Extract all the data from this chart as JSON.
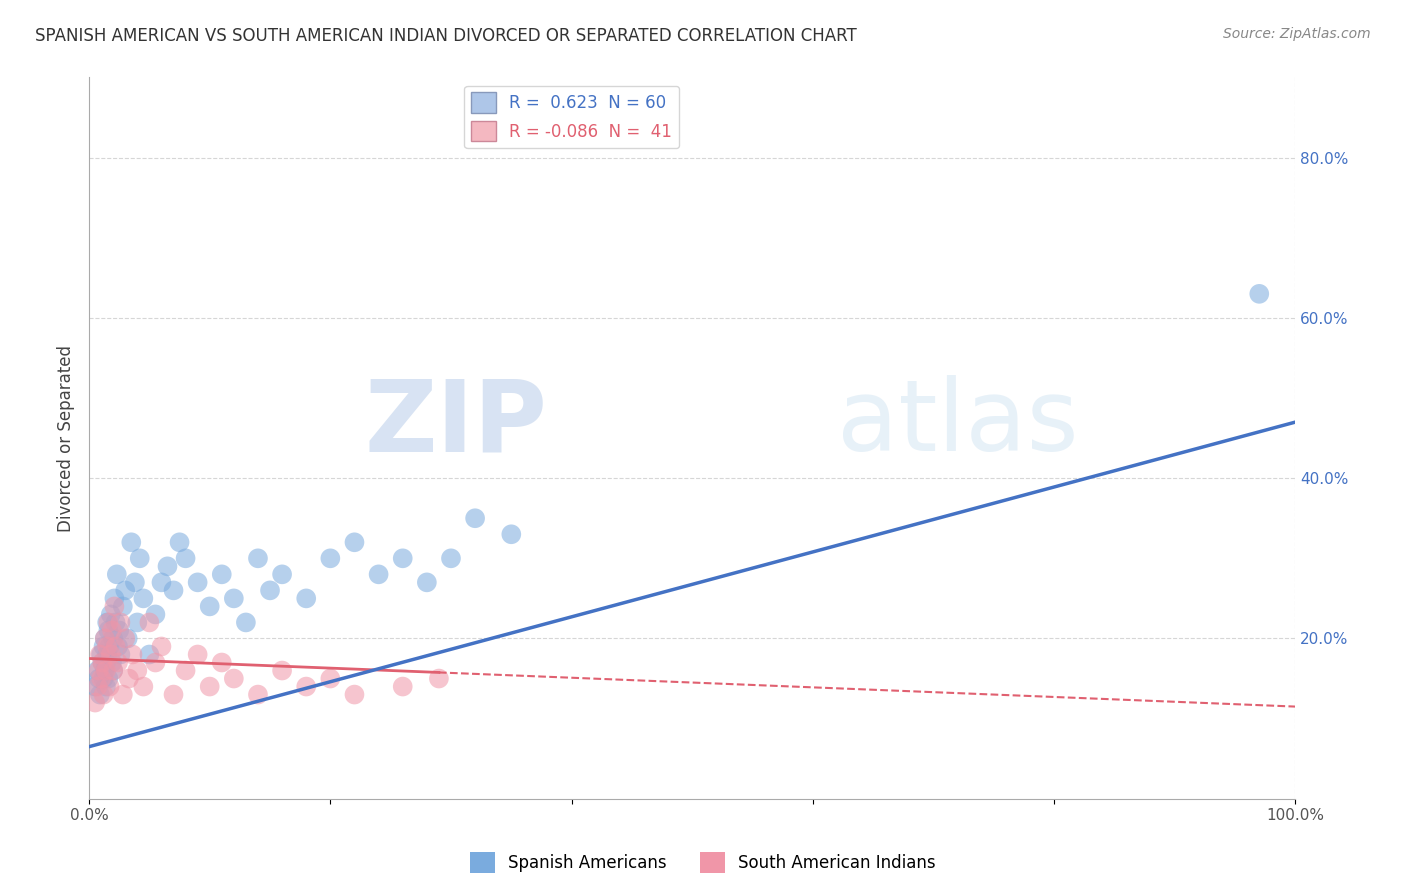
{
  "title": "SPANISH AMERICAN VS SOUTH AMERICAN INDIAN DIVORCED OR SEPARATED CORRELATION CHART",
  "source": "Source: ZipAtlas.com",
  "ylabel": "Divorced or Separated",
  "watermark_zip": "ZIP",
  "watermark_atlas": "atlas",
  "legend_label_blue": "R =  0.623  N = 60",
  "legend_label_pink": "R = -0.086  N =  41",
  "legend_color_blue": "#aec6e8",
  "legend_color_pink": "#f4b8c1",
  "blue_line_color": "#4472c4",
  "pink_line_color": "#e06070",
  "blue_scatter_color": "#7aabde",
  "pink_scatter_color": "#f096a8",
  "background_color": "#ffffff",
  "grid_color": "#cccccc",
  "xlim": [
    0.0,
    1.0
  ],
  "ylim": [
    0.0,
    0.9
  ],
  "x_ticks": [
    0.0,
    0.2,
    0.4,
    0.6,
    0.8,
    1.0
  ],
  "y_ticks_right": [
    0.2,
    0.4,
    0.6,
    0.8
  ],
  "y_tick_labels_right": [
    "20.0%",
    "40.0%",
    "60.0%",
    "80.0%"
  ],
  "blue_x": [
    0.005,
    0.007,
    0.008,
    0.009,
    0.01,
    0.011,
    0.012,
    0.012,
    0.013,
    0.013,
    0.014,
    0.014,
    0.015,
    0.015,
    0.016,
    0.016,
    0.017,
    0.018,
    0.019,
    0.02,
    0.02,
    0.021,
    0.022,
    0.023,
    0.024,
    0.025,
    0.026,
    0.028,
    0.03,
    0.032,
    0.035,
    0.038,
    0.04,
    0.042,
    0.045,
    0.05,
    0.055,
    0.06,
    0.065,
    0.07,
    0.075,
    0.08,
    0.09,
    0.1,
    0.11,
    0.12,
    0.13,
    0.14,
    0.15,
    0.16,
    0.18,
    0.2,
    0.22,
    0.24,
    0.26,
    0.28,
    0.3,
    0.32,
    0.35,
    0.97
  ],
  "blue_y": [
    0.14,
    0.16,
    0.15,
    0.13,
    0.18,
    0.17,
    0.19,
    0.15,
    0.2,
    0.16,
    0.17,
    0.14,
    0.22,
    0.18,
    0.21,
    0.15,
    0.19,
    0.23,
    0.17,
    0.2,
    0.16,
    0.25,
    0.22,
    0.28,
    0.19,
    0.21,
    0.18,
    0.24,
    0.26,
    0.2,
    0.32,
    0.27,
    0.22,
    0.3,
    0.25,
    0.18,
    0.23,
    0.27,
    0.29,
    0.26,
    0.32,
    0.3,
    0.27,
    0.24,
    0.28,
    0.25,
    0.22,
    0.3,
    0.26,
    0.28,
    0.25,
    0.3,
    0.32,
    0.28,
    0.3,
    0.27,
    0.3,
    0.35,
    0.33,
    0.63
  ],
  "pink_x": [
    0.005,
    0.007,
    0.008,
    0.009,
    0.01,
    0.011,
    0.012,
    0.013,
    0.014,
    0.015,
    0.016,
    0.017,
    0.018,
    0.019,
    0.02,
    0.021,
    0.022,
    0.024,
    0.026,
    0.028,
    0.03,
    0.033,
    0.036,
    0.04,
    0.045,
    0.05,
    0.055,
    0.06,
    0.07,
    0.08,
    0.09,
    0.1,
    0.11,
    0.12,
    0.14,
    0.16,
    0.18,
    0.2,
    0.22,
    0.26,
    0.29
  ],
  "pink_y": [
    0.12,
    0.14,
    0.16,
    0.18,
    0.15,
    0.17,
    0.13,
    0.2,
    0.16,
    0.19,
    0.22,
    0.14,
    0.18,
    0.21,
    0.16,
    0.24,
    0.19,
    0.17,
    0.22,
    0.13,
    0.2,
    0.15,
    0.18,
    0.16,
    0.14,
    0.22,
    0.17,
    0.19,
    0.13,
    0.16,
    0.18,
    0.14,
    0.17,
    0.15,
    0.13,
    0.16,
    0.14,
    0.15,
    0.13,
    0.14,
    0.15
  ],
  "blue_trend_x": [
    0.0,
    1.0
  ],
  "blue_trend_y_start": 0.065,
  "blue_trend_y_end": 0.47,
  "pink_trend_x": [
    0.0,
    1.0
  ],
  "pink_trend_y_start": 0.175,
  "pink_trend_y_end": 0.115
}
